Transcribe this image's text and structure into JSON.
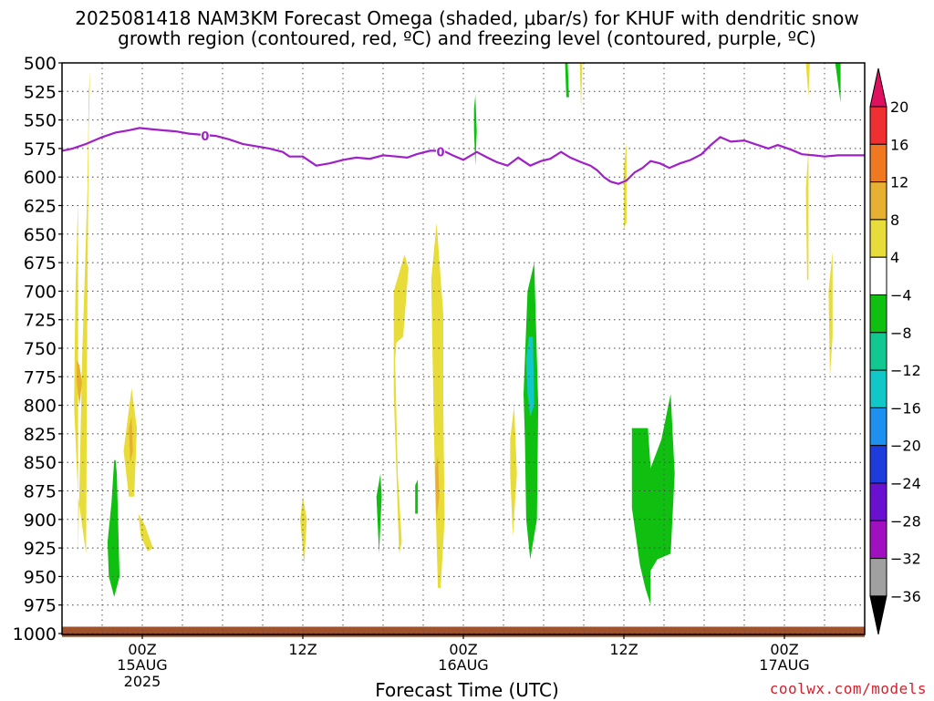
{
  "title_line1": "2025081418 NAM3KM Forecast Omega (shaded, μbar/s) for KHUF with dendritic snow",
  "title_line2": "growth region (contoured, red, ºC) and freezing level (contoured, purple, ºC)",
  "xlabel": "Forecast Time (UTC)",
  "credit": "coolwx.com/models",
  "chart_data": {
    "type": "heatmap",
    "title": "2025081418 NAM3KM Forecast Omega (shaded, μbar/s) for KHUF with dendritic snow growth region (contoured, red, ºC) and freezing level (contoured, purple, ºC)",
    "xlabel": "Forecast Time (UTC)",
    "ylabel": "",
    "x_unit": "hours since 2025-08-14 18Z",
    "xlim": [
      0,
      60
    ],
    "ylim": [
      1000,
      500
    ],
    "y_ticks": [
      500,
      525,
      550,
      575,
      600,
      625,
      650,
      675,
      700,
      725,
      750,
      775,
      800,
      825,
      850,
      875,
      900,
      925,
      950,
      975,
      1000
    ],
    "x_ticks": [
      {
        "x": 6,
        "label": "00Z",
        "sub": [
          "15AUG",
          "2025"
        ]
      },
      {
        "x": 18,
        "label": "12Z",
        "sub": []
      },
      {
        "x": 30,
        "label": "00Z",
        "sub": [
          "16AUG"
        ]
      },
      {
        "x": 42,
        "label": "12Z",
        "sub": []
      },
      {
        "x": 54,
        "label": "00Z",
        "sub": [
          "17AUG"
        ]
      }
    ],
    "grid": true,
    "colorbar": {
      "ticks": [
        "20",
        "16",
        "12",
        "8",
        "4",
        "−4",
        "−8",
        "−12",
        "−16",
        "−20",
        "−24",
        "−28",
        "−32",
        "−36"
      ],
      "colors": [
        "#e01060",
        "#f03030",
        "#f07820",
        "#e8b030",
        "#e8dc3a",
        "#ffffff",
        "#10c010",
        "#10c890",
        "#10c8c8",
        "#1e90f0",
        "#1e3cdc",
        "#6a10d0",
        "#a010c0",
        "#a0a0a0",
        "#000000"
      ]
    },
    "omega_regions": [
      {
        "value": 5,
        "x": [
          1.2,
          1.5,
          1.9,
          2.0,
          2.1,
          2.0,
          1.9,
          1.8,
          1.2,
          0.9,
          1.0,
          1.2
        ],
        "p": [
          930,
          760,
          610,
          525,
          507,
          560,
          700,
          930,
          880,
          800,
          700,
          620
        ]
      },
      {
        "value": 9,
        "x": [
          1.1,
          1.3,
          1.5,
          1.3,
          1.1
        ],
        "p": [
          760,
          765,
          780,
          800,
          780
        ]
      },
      {
        "value": 5,
        "x": [
          4.6,
          5.2,
          5.6,
          5.4,
          5.0,
          4.8,
          4.6
        ],
        "p": [
          840,
          785,
          820,
          880,
          880,
          860,
          840
        ]
      },
      {
        "value": 9,
        "x": [
          5.0,
          5.2,
          5.3,
          5.1
        ],
        "p": [
          820,
          810,
          840,
          850
        ]
      },
      {
        "value": 5,
        "x": [
          5.7,
          6.2,
          6.8,
          6.4,
          5.9
        ],
        "p": [
          895,
          905,
          925,
          928,
          915
        ]
      },
      {
        "value": -6,
        "x": [
          3.4,
          3.7,
          3.9,
          4.0,
          4.1,
          4.3,
          3.9,
          3.5,
          3.4
        ],
        "p": [
          920,
          885,
          848,
          848,
          860,
          950,
          968,
          950,
          920
        ]
      },
      {
        "value": 5,
        "x": [
          17.8,
          18.0,
          18.3,
          18.1,
          17.8
        ],
        "p": [
          900,
          880,
          900,
          940,
          900
        ]
      },
      {
        "value": 5,
        "x": [
          24.8,
          25.6,
          25.9,
          25.5,
          25.2,
          25.0,
          24.9,
          25.1,
          25.4,
          25.2,
          24.8
        ],
        "p": [
          700,
          668,
          680,
          740,
          743,
          745,
          760,
          860,
          920,
          930,
          790
        ]
      },
      {
        "value": -6,
        "x": [
          23.5,
          23.8,
          23.9,
          23.7,
          23.5
        ],
        "p": [
          880,
          860,
          880,
          930,
          880
        ]
      },
      {
        "value": -6,
        "x": [
          26.4,
          26.6,
          26.6,
          26.4
        ],
        "p": [
          870,
          865,
          895,
          895
        ]
      },
      {
        "value": 5,
        "x": [
          27.6,
          28.0,
          28.5,
          28.5,
          28.6,
          28.3,
          28.1,
          27.9,
          27.7,
          27.6
        ],
        "p": [
          690,
          640,
          720,
          800,
          900,
          960,
          960,
          880,
          760,
          690
        ]
      },
      {
        "value": 9,
        "x": [
          27.9,
          28.1,
          28.2,
          28.0
        ],
        "p": [
          855,
          845,
          880,
          900
        ]
      },
      {
        "value": -6,
        "x": [
          30.8,
          30.9,
          31.0,
          30.9,
          30.8
        ],
        "p": [
          540,
          528,
          560,
          590,
          560
        ]
      },
      {
        "value": 5,
        "x": [
          33.5,
          33.8,
          34.0,
          33.7,
          33.5
        ],
        "p": [
          830,
          800,
          860,
          915,
          860
        ]
      },
      {
        "value": -6,
        "x": [
          34.5,
          34.8,
          35.3,
          35.6,
          35.5,
          35.0,
          34.7,
          34.6,
          34.5
        ],
        "p": [
          790,
          700,
          675,
          800,
          900,
          935,
          900,
          830,
          790
        ]
      },
      {
        "value": -14,
        "x": [
          34.7,
          34.9,
          35.2,
          35.3,
          35.0,
          34.8
        ],
        "p": [
          760,
          740,
          740,
          800,
          810,
          790
        ]
      },
      {
        "value": -6,
        "x": [
          37.6,
          37.8,
          37.9,
          37.7
        ],
        "p": [
          500,
          500,
          530,
          530
        ]
      },
      {
        "value": 5,
        "x": [
          38.7,
          38.9,
          38.8
        ],
        "p": [
          500,
          500,
          540
        ]
      },
      {
        "value": 5,
        "x": [
          42.0,
          42.2,
          42.2,
          42.0
        ],
        "p": [
          590,
          570,
          640,
          645
        ]
      },
      {
        "value": -6,
        "x": [
          42.6,
          43.2,
          43.8,
          44.0,
          44.8,
          45.5,
          45.8,
          45.5,
          44.5,
          44.0,
          44.0,
          43.6,
          43.2,
          42.6
        ],
        "p": [
          820,
          820,
          820,
          855,
          830,
          790,
          860,
          930,
          935,
          945,
          975,
          960,
          940,
          890
        ]
      },
      {
        "value": 5,
        "x": [
          55.6,
          55.9,
          55.8
        ],
        "p": [
          500,
          500,
          530
        ]
      },
      {
        "value": 5,
        "x": [
          55.6,
          55.8,
          55.8,
          55.7
        ],
        "p": [
          610,
          575,
          690,
          690
        ]
      },
      {
        "value": 5,
        "x": [
          57.3,
          57.6,
          57.6,
          57.4
        ],
        "p": [
          700,
          665,
          740,
          775
        ]
      },
      {
        "value": -6,
        "x": [
          57.8,
          58.2,
          58.2
        ],
        "p": [
          500,
          500,
          535
        ]
      }
    ],
    "freezing_level": {
      "label": "0",
      "x": [
        0,
        0.8,
        1.8,
        3.0,
        4.0,
        5.0,
        5.8,
        6.6,
        7.5,
        8.5,
        9.5,
        10.5,
        11.5,
        12.5,
        13.5,
        14.5,
        15.5,
        16.5,
        17.0,
        18.0,
        19.0,
        19.5,
        20.0,
        21.0,
        22.0,
        23.0,
        24.0,
        25.0,
        25.8,
        26.5,
        27.5,
        28.5,
        29.2,
        30.0,
        31.0,
        31.8,
        32.5,
        33.3,
        34.1,
        35.0,
        35.8,
        36.5,
        37.3,
        38.0,
        38.8,
        39.5,
        40.0,
        40.5,
        41.0,
        41.6,
        42.2,
        42.8,
        43.4,
        44.0,
        44.7,
        45.4,
        46.2,
        47.0,
        47.8,
        48.5,
        49.2,
        50.0,
        51.0,
        52.0,
        52.8,
        53.5,
        54.5,
        55.3,
        56.2,
        57.0,
        58.0,
        59.0,
        60.0
      ],
      "p": [
        577,
        575,
        571,
        565,
        561,
        559,
        557,
        558,
        559,
        560,
        562,
        563,
        564,
        567,
        571,
        573,
        575,
        578,
        582,
        582,
        590,
        589,
        588,
        585,
        583,
        584,
        581,
        582,
        583,
        580,
        577,
        577,
        581,
        585,
        578,
        583,
        587,
        590,
        583,
        590,
        586,
        584,
        578,
        583,
        587,
        590,
        594,
        600,
        604,
        606,
        603,
        596,
        592,
        586,
        588,
        592,
        588,
        585,
        580,
        572,
        565,
        569,
        568,
        572,
        575,
        572,
        576,
        580,
        581,
        582,
        581,
        581,
        581
      ],
      "label_x": [
        10.7,
        28.3
      ]
    },
    "surface_band": {
      "p_top": 994,
      "p_bottom": 1003,
      "color": "#a0522d"
    }
  }
}
